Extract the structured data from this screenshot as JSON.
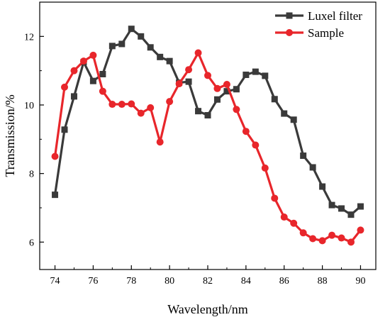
{
  "chart_data": {
    "type": "line",
    "title": "",
    "xlabel": "Wavelength/nm",
    "ylabel": "Transmission/%",
    "xlim": [
      73.2,
      90.8
    ],
    "ylim": [
      5.2,
      13.0
    ],
    "x_ticks": [
      74,
      76,
      78,
      80,
      82,
      84,
      86,
      88,
      90
    ],
    "y_ticks": [
      6,
      8,
      10,
      12
    ],
    "grid": false,
    "legend_position": "top-right",
    "x": [
      74,
      74.5,
      75,
      75.5,
      76,
      76.5,
      77,
      77.5,
      78,
      78.5,
      79,
      79.5,
      80,
      80.5,
      81,
      81.5,
      82,
      82.5,
      83,
      83.5,
      84,
      84.5,
      85,
      85.5,
      86,
      86.5,
      87,
      87.5,
      88,
      88.5,
      89,
      89.5,
      90
    ],
    "series": [
      {
        "name": "Luxel filter",
        "color": "#3a3a3a",
        "marker": "square",
        "values": [
          7.38,
          9.28,
          10.25,
          11.25,
          10.7,
          10.9,
          11.72,
          11.78,
          12.22,
          12.0,
          11.68,
          11.4,
          11.28,
          10.65,
          10.68,
          9.82,
          9.7,
          10.16,
          10.4,
          10.46,
          10.88,
          10.97,
          10.85,
          10.17,
          9.75,
          9.57,
          8.52,
          8.18,
          7.62,
          7.08,
          6.98,
          6.8,
          7.04
        ]
      },
      {
        "name": "Sample",
        "color": "#e8262b",
        "marker": "circle",
        "values": [
          8.5,
          10.52,
          11.0,
          11.28,
          11.45,
          10.4,
          10.02,
          10.02,
          10.03,
          9.76,
          9.92,
          8.92,
          10.1,
          10.62,
          11.03,
          11.52,
          10.86,
          10.48,
          10.6,
          9.87,
          9.23,
          8.83,
          8.16,
          7.28,
          6.73,
          6.55,
          6.27,
          6.1,
          6.04,
          6.2,
          6.12,
          6.0,
          6.35
        ]
      }
    ]
  }
}
